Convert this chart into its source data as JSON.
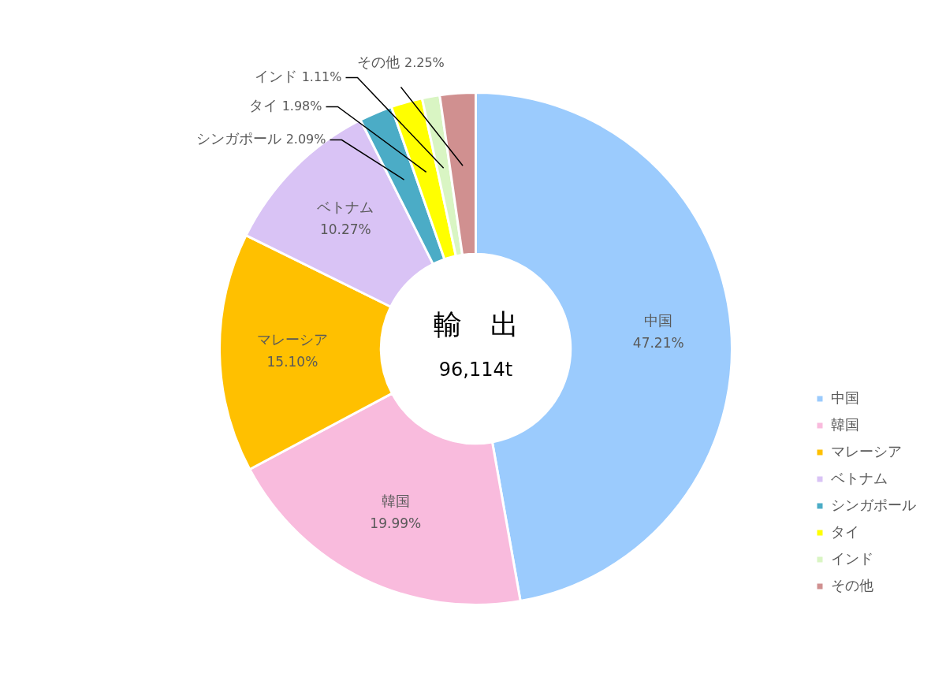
{
  "chart_data": {
    "type": "donut",
    "categories": [
      "中国",
      "韓国",
      "マレーシア",
      "ベトナム",
      "シンガポール",
      "タイ",
      "インド",
      "その他"
    ],
    "values": [
      47.21,
      19.99,
      15.1,
      10.27,
      2.09,
      1.98,
      1.11,
      2.25
    ],
    "colors": [
      "#9bcbfd",
      "#f9bbdd",
      "#ffc000",
      "#d9c3f5",
      "#4bacc6",
      "#ffff00",
      "#d9f5c3",
      "#d09090"
    ],
    "value_labels": [
      "47.21%",
      "19.99%",
      "15.10%",
      "10.27%",
      "2.09%",
      "1.98%",
      "1.11%",
      "2.25%"
    ],
    "legend": "bottom right",
    "annotations": [
      "輸　出",
      "96,114t"
    ]
  }
}
